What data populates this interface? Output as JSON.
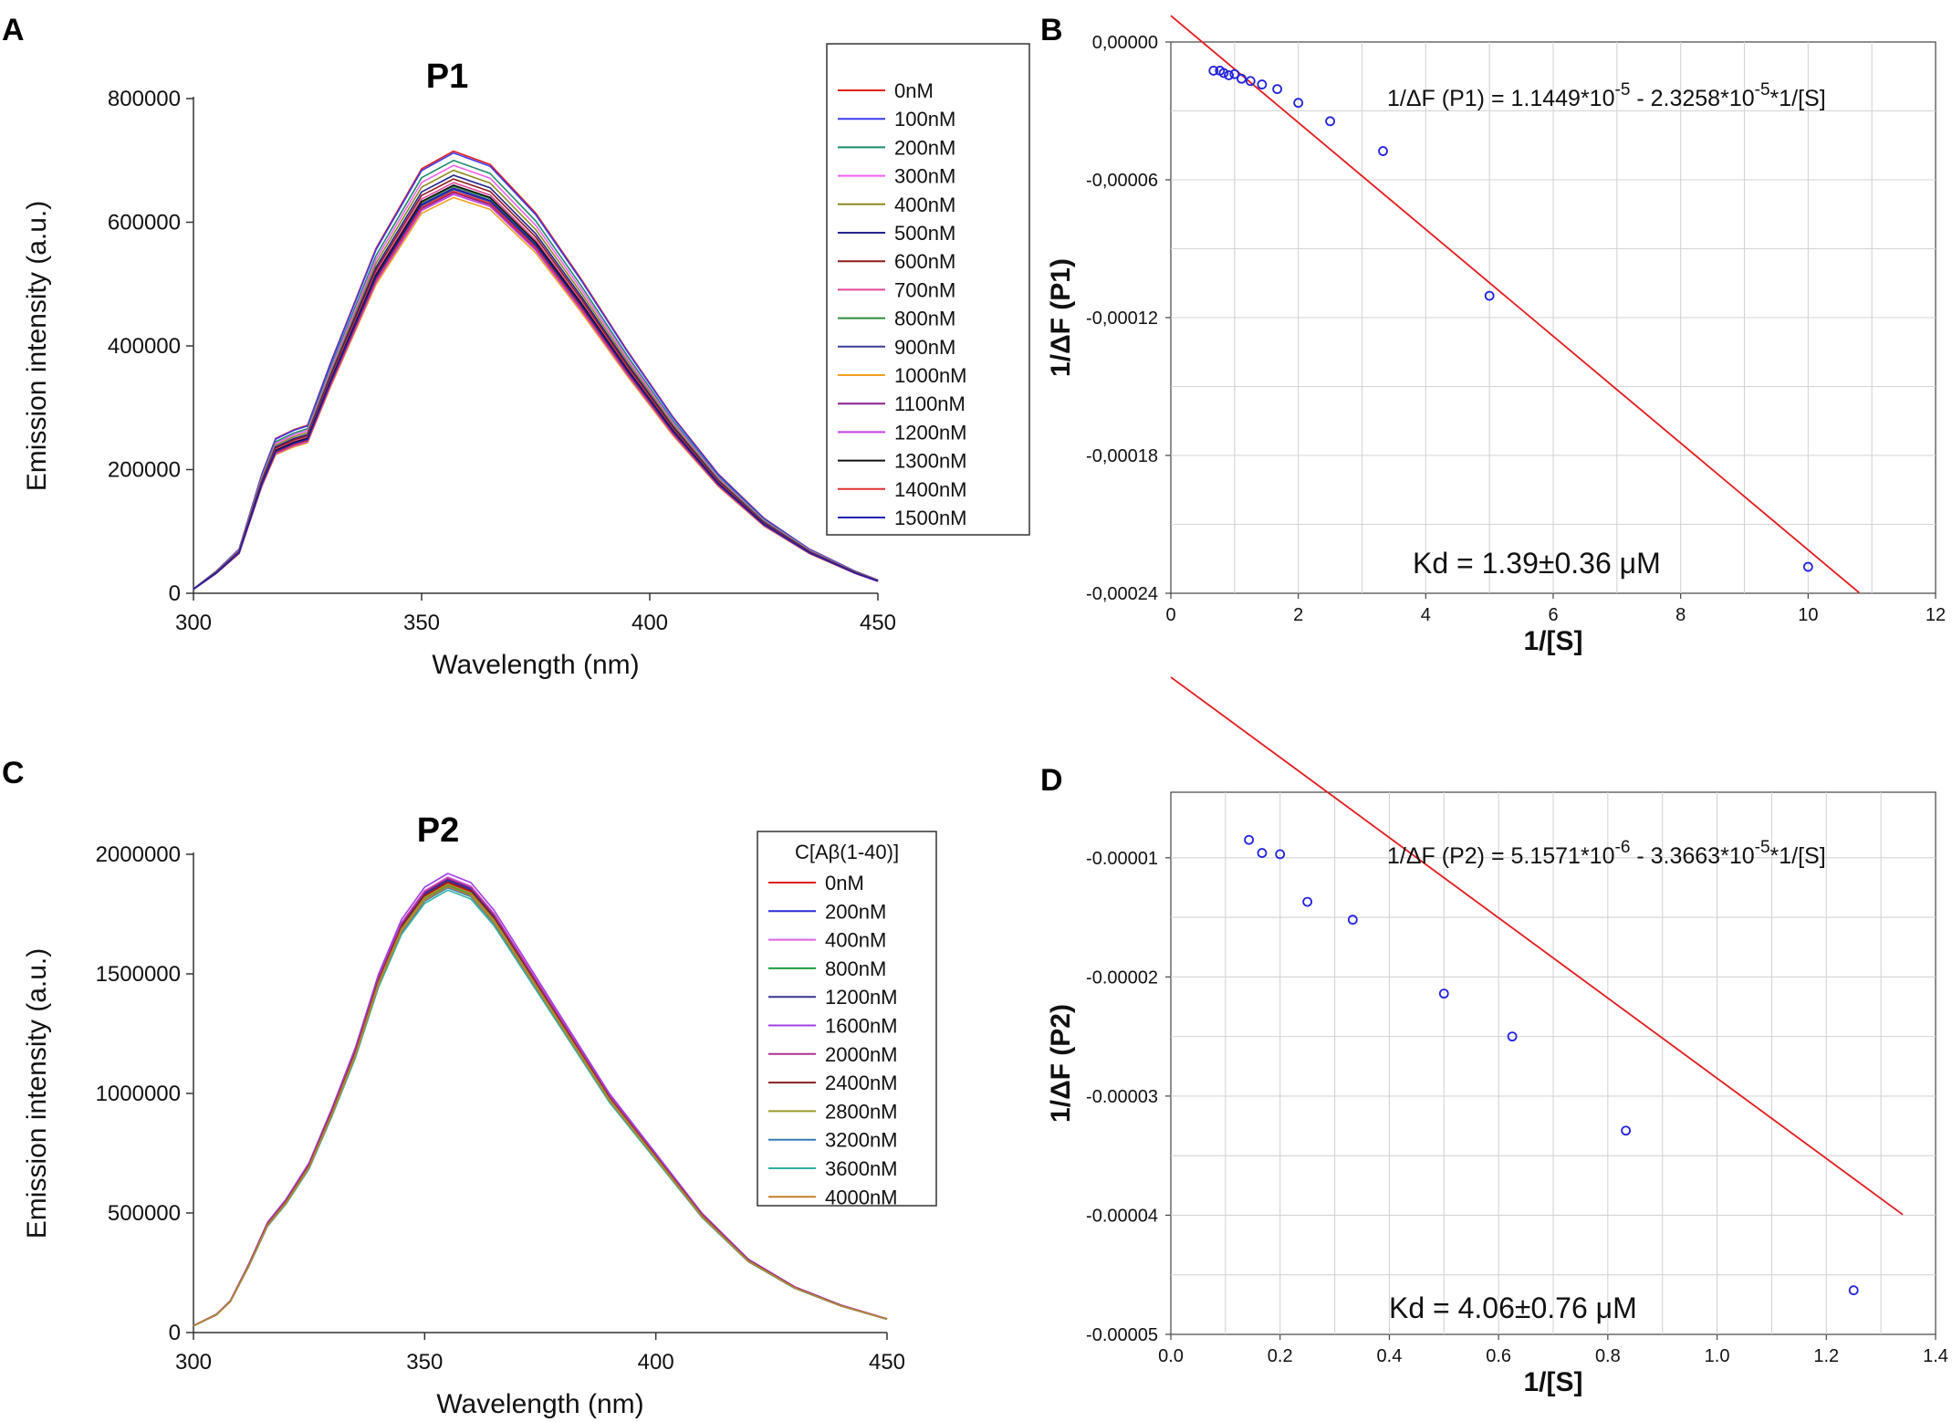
{
  "chart_data": [
    {
      "panel": "A",
      "type": "line",
      "title": "P1",
      "xlabel": "Wavelength (nm)",
      "ylabel": "Emission intensity (a.u.)",
      "xlim": [
        300,
        450
      ],
      "ylim": [
        0,
        800000
      ],
      "xticks": [
        "300",
        "350",
        "400",
        "450"
      ],
      "yticks": [
        "0",
        "200000",
        "400000",
        "600000",
        "800000"
      ],
      "legend_title": "",
      "legend_position": "right",
      "x": [
        300,
        305,
        310,
        315,
        318,
        322,
        325,
        330,
        340,
        350,
        357,
        365,
        375,
        385,
        395,
        405,
        415,
        425,
        435,
        445,
        450
      ],
      "profile": [
        0.01,
        0.05,
        0.1,
        0.27,
        0.35,
        0.37,
        0.38,
        0.52,
        0.78,
        0.96,
        1.0,
        0.97,
        0.86,
        0.71,
        0.55,
        0.4,
        0.27,
        0.17,
        0.1,
        0.05,
        0.03
      ],
      "series": [
        {
          "name": "0nM",
          "color": "#e41a1c",
          "peak": 715000
        },
        {
          "name": "100nM",
          "color": "#3a3af0",
          "peak": 712000
        },
        {
          "name": "200nM",
          "color": "#1b8a6b",
          "peak": 700000
        },
        {
          "name": "300nM",
          "color": "#f25ef2",
          "peak": 692000
        },
        {
          "name": "400nM",
          "color": "#8a8a1e",
          "peak": 684000
        },
        {
          "name": "500nM",
          "color": "#22228f",
          "peak": 676000
        },
        {
          "name": "600nM",
          "color": "#8b1a1a",
          "peak": 670000
        },
        {
          "name": "700nM",
          "color": "#e0459a",
          "peak": 664000
        },
        {
          "name": "800nM",
          "color": "#2e8b3e",
          "peak": 658000
        },
        {
          "name": "900nM",
          "color": "#3b3b9a",
          "peak": 653000
        },
        {
          "name": "1000nM",
          "color": "#f0a020",
          "peak": 640000
        },
        {
          "name": "1100nM",
          "color": "#8b1e8b",
          "peak": 648000
        },
        {
          "name": "1200nM",
          "color": "#c040e0",
          "peak": 645000
        },
        {
          "name": "1300nM",
          "color": "#111111",
          "peak": 660000
        },
        {
          "name": "1400nM",
          "color": "#e03030",
          "peak": 650000
        },
        {
          "name": "1500nM",
          "color": "#2020b0",
          "peak": 655000
        }
      ]
    },
    {
      "panel": "B",
      "type": "scatter",
      "title": "",
      "xlabel": "1/[S]",
      "ylabel": "1/ΔF (P1)",
      "xlim": [
        0,
        12
      ],
      "ylim": [
        -0.00024,
        0
      ],
      "xticks": [
        "0",
        "2",
        "4",
        "6",
        "8",
        "10",
        "12"
      ],
      "yticks": [
        "0,00000",
        "-0,00006",
        "-0,00012",
        "-0,00018",
        "-0,00024"
      ],
      "points": [
        {
          "x": 0.67,
          "y": -1.25e-05
        },
        {
          "x": 0.77,
          "y": -1.25e-05
        },
        {
          "x": 0.83,
          "y": -1.35e-05
        },
        {
          "x": 0.91,
          "y": -1.45e-05
        },
        {
          "x": 1.0,
          "y": -1.4e-05
        },
        {
          "x": 1.11,
          "y": -1.6e-05
        },
        {
          "x": 1.25,
          "y": -1.7e-05
        },
        {
          "x": 1.43,
          "y": -1.85e-05
        },
        {
          "x": 1.67,
          "y": -2.05e-05
        },
        {
          "x": 2.0,
          "y": -2.65e-05
        },
        {
          "x": 2.5,
          "y": -3.45e-05
        },
        {
          "x": 3.33,
          "y": -4.75e-05
        },
        {
          "x": 5.0,
          "y": -0.0001105
        },
        {
          "x": 10.0,
          "y": -0.0002285
        }
      ],
      "fit": {
        "intercept": 1.1449e-05,
        "slope": -2.3258e-05,
        "x_range": [
          0.0,
          10.8
        ],
        "color": "#e41a1c"
      },
      "equation_parts": [
        "1/ΔF (P1) = 1.1449*10",
        "-5",
        " - 2.3258*10",
        "-5",
        "*1/[S]"
      ],
      "kd": "Kd = 1.39±0.36 μM"
    },
    {
      "panel": "C",
      "type": "line",
      "title": "P2",
      "xlabel": "Wavelength (nm)",
      "ylabel": "Emission intensity (a.u.)",
      "xlim": [
        300,
        450
      ],
      "ylim": [
        0,
        2000000
      ],
      "xticks": [
        "300",
        "350",
        "400",
        "450"
      ],
      "yticks": [
        "0",
        "500000",
        "1000000",
        "1500000",
        "2000000"
      ],
      "legend_title": "C[Aβ(1-40)]",
      "legend_position": "right",
      "x": [
        300,
        305,
        308,
        312,
        316,
        320,
        325,
        330,
        335,
        340,
        345,
        350,
        355,
        360,
        365,
        370,
        380,
        390,
        400,
        410,
        420,
        430,
        440,
        450
      ],
      "profile": [
        0.015,
        0.04,
        0.07,
        0.15,
        0.24,
        0.29,
        0.37,
        0.49,
        0.62,
        0.78,
        0.9,
        0.97,
        1.0,
        0.98,
        0.92,
        0.84,
        0.68,
        0.52,
        0.39,
        0.26,
        0.16,
        0.1,
        0.06,
        0.03
      ],
      "series": [
        {
          "name": "0nM",
          "color": "#e41a1c",
          "peak": 1880000
        },
        {
          "name": "200nM",
          "color": "#2c2cd8",
          "peak": 1890000
        },
        {
          "name": "400nM",
          "color": "#e060e0",
          "peak": 1905000
        },
        {
          "name": "800nM",
          "color": "#1e9b3e",
          "peak": 1870000
        },
        {
          "name": "1200nM",
          "color": "#33338c",
          "peak": 1895000
        },
        {
          "name": "1600nM",
          "color": "#a040e8",
          "peak": 1920000
        },
        {
          "name": "2000nM",
          "color": "#b03090",
          "peak": 1900000
        },
        {
          "name": "2400nM",
          "color": "#8b2020",
          "peak": 1885000
        },
        {
          "name": "2800nM",
          "color": "#9a9a2a",
          "peak": 1875000
        },
        {
          "name": "3200nM",
          "color": "#3a78b8",
          "peak": 1860000
        },
        {
          "name": "3600nM",
          "color": "#30b0a0",
          "peak": 1850000
        },
        {
          "name": "4000nM",
          "color": "#c08030",
          "peak": 1865000
        }
      ]
    },
    {
      "panel": "D",
      "type": "scatter",
      "title": "",
      "xlabel": "1/[S]",
      "ylabel": "1/ΔF (P2)",
      "xlim": [
        0,
        1.4
      ],
      "ylim": [
        -5e-05,
        -4.5e-06
      ],
      "xticks": [
        "0.0",
        "0.2",
        "0.4",
        "0.6",
        "0.8",
        "1.0",
        "1.2",
        "1.4"
      ],
      "yticks": [
        "-0.00001",
        "-0.00002",
        "-0.00003",
        "-0.00004",
        "-0.00005"
      ],
      "points": [
        {
          "x": 0.143,
          "y": -8.5e-06
        },
        {
          "x": 0.167,
          "y": -9.6e-06
        },
        {
          "x": 0.2,
          "y": -9.7e-06
        },
        {
          "x": 0.25,
          "y": -1.37e-05
        },
        {
          "x": 0.333,
          "y": -1.52e-05
        },
        {
          "x": 0.5,
          "y": -2.14e-05
        },
        {
          "x": 0.625,
          "y": -2.5e-05
        },
        {
          "x": 0.833,
          "y": -3.29e-05
        },
        {
          "x": 1.25,
          "y": -4.63e-05
        }
      ],
      "fit": {
        "intercept": 5.1571e-06,
        "slope": -3.3663e-05,
        "x_range": [
          0.0,
          1.34
        ],
        "color": "#e41a1c"
      },
      "equation_parts": [
        "1/ΔF (P2) = 5.1571*10",
        "-6",
        " - 3.3663*10",
        "-5",
        "*1/[S]"
      ],
      "kd": "Kd = 4.06±0.76 μM"
    }
  ]
}
